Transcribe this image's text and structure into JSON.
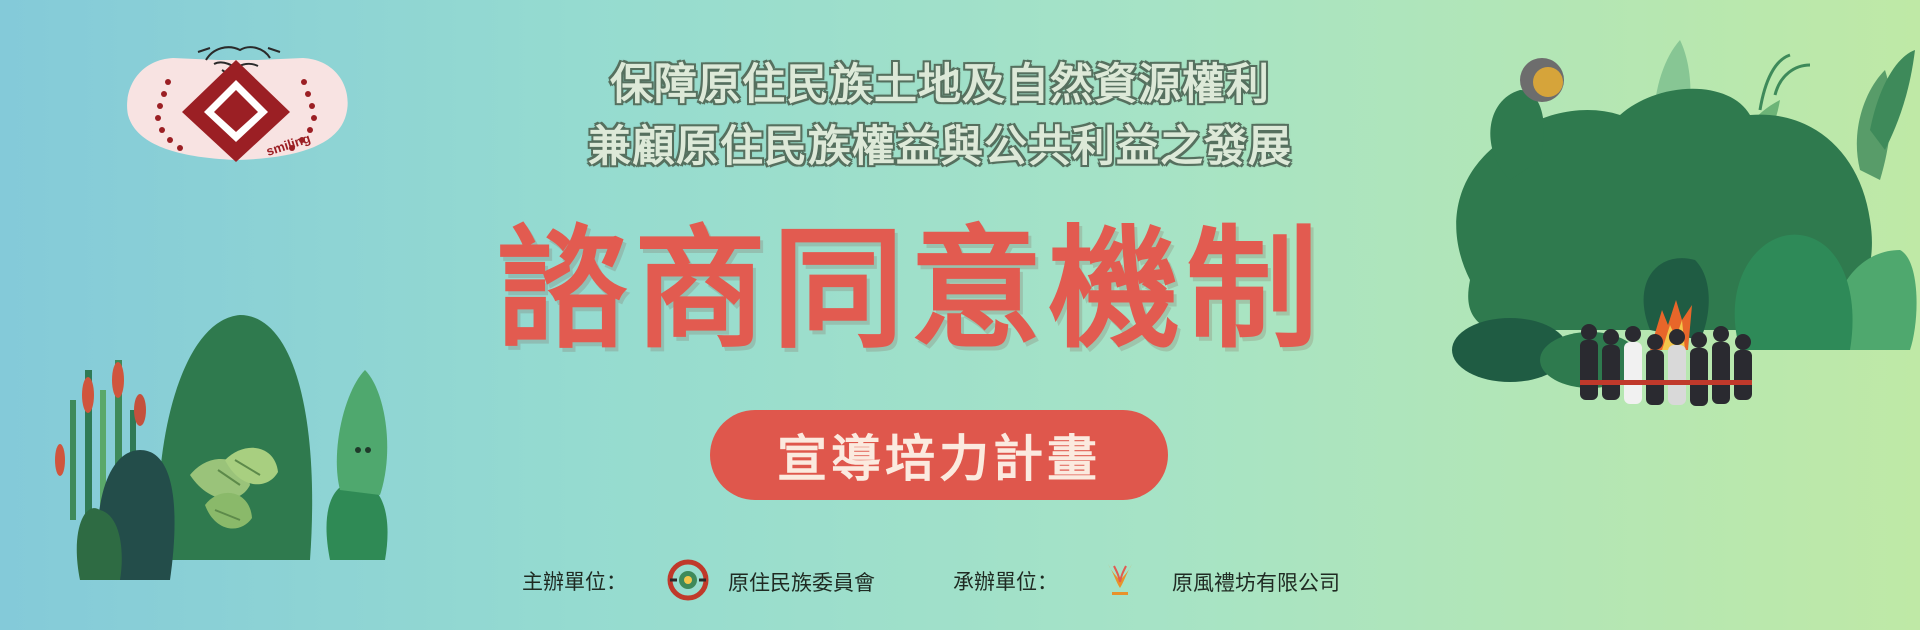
{
  "banner": {
    "logo_text": "smiling",
    "subtitle_line1": "保障原住民族土地及自然資源權利",
    "subtitle_line2": "兼顧原住民族權益與公共利益之發展",
    "main_title": "諮商同意機制",
    "program_label": "宣導培力計畫"
  },
  "footer": {
    "host_label": "主辦單位：",
    "host_org": "原住民族委員會",
    "organizer_label": "承辦單位：",
    "organizer_org": "原風禮坊有限公司"
  },
  "colors": {
    "accent_red": "#e25b50",
    "forest_green": "#2f7a55",
    "dark_red": "#9b1f24"
  }
}
